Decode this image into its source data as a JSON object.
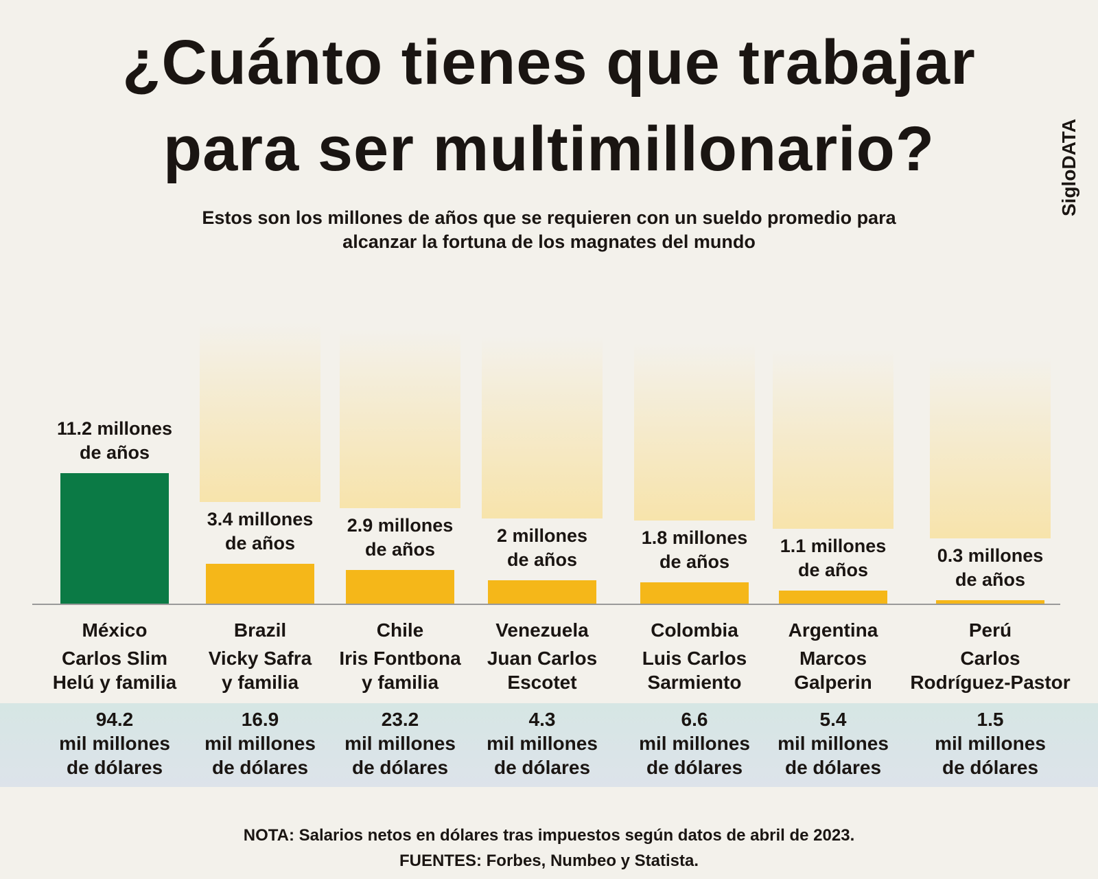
{
  "chart_data": {
    "type": "bar",
    "title": [
      "¿Cuánto tienes que trabajar",
      "para ser multimillonario?"
    ],
    "subtitle": [
      "Estos son los millones de años que se requieren con un sueldo  promedio para",
      "alcanzar la fortuna de los magnates del mundo"
    ],
    "brand": "SigloDATA",
    "categories": [
      "México",
      "Brazil",
      "Chile",
      "Venezuela",
      "Colombia",
      "Argentina",
      "Perú"
    ],
    "names": [
      [
        "Carlos Slim",
        "Helú y familia"
      ],
      [
        "Vicky Safra",
        "y familia"
      ],
      [
        "Iris Fontbona",
        "y familia"
      ],
      [
        "Juan Carlos",
        "Escotet"
      ],
      [
        "Luis Carlos",
        "Sarmiento"
      ],
      [
        "Marcos",
        "Galperin"
      ],
      [
        "Carlos",
        "Rodríguez-Pastor"
      ]
    ],
    "values": [
      11.2,
      3.4,
      2.9,
      2,
      1.8,
      1.1,
      0.3
    ],
    "value_labels": [
      "11.2 millones de años",
      "3.4 millones de años",
      "2.9 millones de años",
      "2 millones de años",
      "1.8 millones de años",
      "1.1 millones de años",
      "0.3 millones de años"
    ],
    "colors": [
      "#0b7a45",
      "#f5b719",
      "#f5b719",
      "#f5b719",
      "#f5b719",
      "#f5b719",
      "#f5b719"
    ],
    "fortunes": [
      94.2,
      16.9,
      23.2,
      4.3,
      6.6,
      5.4,
      1.5
    ],
    "fortune_unit": "mil millones de dólares",
    "notes": [
      "NOTA: Salarios netos en dólares tras impuestos según datos de abril de 2023.",
      "FUENTES: Forbes, Numbeo y Statista."
    ]
  }
}
